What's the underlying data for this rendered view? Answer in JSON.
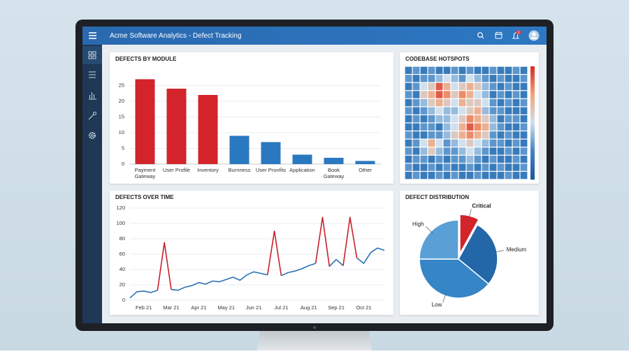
{
  "header": {
    "title": "Acme Software Analytics - Defect Tracking",
    "notification_count": "1"
  },
  "chart_data": [
    {
      "type": "bar",
      "title": "DEFECTS BY MODULE",
      "categories": [
        "Payment\nGateway",
        "User Profile",
        "Inventory",
        "Burnness",
        "User Pronfits",
        "Application",
        "Book\nGateway",
        "Other"
      ],
      "values": [
        27,
        24,
        22,
        9,
        7,
        3,
        2,
        1
      ],
      "colors": [
        "#d3232b",
        "#d3232b",
        "#d3232b",
        "#2a78bf",
        "#2a78bf",
        "#2a78bf",
        "#2a78bf",
        "#2a78bf"
      ],
      "ylim": [
        0,
        30
      ],
      "yticks": [
        0,
        5,
        10,
        15,
        20,
        25
      ],
      "grid": true
    },
    {
      "type": "heatmap",
      "title": "CODEBASE HOTSPOTS",
      "z": [
        [
          2,
          3,
          2,
          3,
          2,
          2,
          3,
          2,
          3,
          2,
          2,
          3,
          2,
          2,
          3,
          2
        ],
        [
          3,
          2,
          3,
          3,
          4,
          5,
          4,
          3,
          5,
          4,
          3,
          2,
          3,
          2,
          2,
          3
        ],
        [
          2,
          3,
          5,
          6,
          9,
          7,
          5,
          6,
          7,
          6,
          4,
          3,
          2,
          3,
          2,
          2
        ],
        [
          3,
          2,
          6,
          7,
          9,
          8,
          6,
          8,
          7,
          5,
          4,
          2,
          3,
          2,
          3,
          2
        ],
        [
          2,
          3,
          4,
          6,
          7,
          6,
          5,
          7,
          6,
          6,
          5,
          3,
          2,
          3,
          2,
          3
        ],
        [
          3,
          2,
          3,
          4,
          5,
          4,
          4,
          5,
          6,
          7,
          4,
          3,
          3,
          2,
          2,
          2
        ],
        [
          2,
          3,
          2,
          3,
          4,
          4,
          5,
          6,
          8,
          7,
          6,
          4,
          2,
          3,
          3,
          2
        ],
        [
          2,
          2,
          3,
          3,
          2,
          4,
          5,
          7,
          9,
          8,
          7,
          4,
          3,
          2,
          2,
          3
        ],
        [
          3,
          2,
          2,
          3,
          3,
          4,
          6,
          7,
          8,
          7,
          6,
          3,
          2,
          3,
          2,
          2
        ],
        [
          2,
          3,
          5,
          7,
          5,
          3,
          4,
          5,
          6,
          5,
          4,
          3,
          3,
          2,
          3,
          2
        ],
        [
          3,
          2,
          4,
          6,
          4,
          3,
          3,
          4,
          5,
          4,
          3,
          2,
          2,
          3,
          2,
          3
        ],
        [
          2,
          3,
          3,
          2,
          3,
          2,
          3,
          3,
          4,
          3,
          2,
          3,
          2,
          2,
          3,
          2
        ],
        [
          3,
          2,
          2,
          3,
          2,
          3,
          2,
          2,
          3,
          2,
          3,
          2,
          3,
          2,
          2,
          3
        ],
        [
          2,
          3,
          2,
          2,
          3,
          2,
          3,
          2,
          2,
          3,
          2,
          2,
          2,
          3,
          2,
          2
        ]
      ],
      "zlim": [
        0,
        10
      ],
      "colorscale": [
        "#1a5798",
        "#3f84c4",
        "#cfe0ee",
        "#f3a47a",
        "#d42b22"
      ],
      "colorbar": true
    },
    {
      "type": "line",
      "title": "DEFECTS OVER TIME",
      "categories": [
        null,
        null,
        "Feb 21",
        null,
        null,
        null,
        "Mar 21",
        null,
        null,
        null,
        "Apr 21",
        null,
        null,
        null,
        "May 21",
        null,
        null,
        null,
        "Jun 21",
        null,
        null,
        null,
        "Jul 21",
        null,
        null,
        null,
        "Aug 21",
        null,
        null,
        null,
        "Sep 21",
        null,
        null,
        null,
        "Oct 21",
        null,
        null,
        null
      ],
      "series": [
        {
          "color": "#2a72b5",
          "values": [
            3,
            11,
            12,
            10,
            13,
            null,
            14,
            13,
            17,
            19,
            23,
            21,
            25,
            24,
            27,
            30,
            26,
            33,
            37,
            35,
            33,
            null,
            32,
            36,
            38,
            41,
            45,
            48,
            null,
            44,
            53,
            45,
            null,
            55,
            48,
            62,
            68,
            65
          ]
        },
        {
          "color": "#c8202a",
          "values": [
            null,
            null,
            null,
            null,
            13,
            75,
            14,
            null,
            null,
            null,
            null,
            null,
            null,
            null,
            null,
            null,
            null,
            null,
            null,
            null,
            33,
            90,
            32,
            null,
            null,
            null,
            null,
            48,
            108,
            44,
            null,
            45,
            108,
            55,
            null,
            null,
            null,
            null
          ]
        }
      ],
      "ylim": [
        0,
        120
      ],
      "yticks": [
        0,
        20,
        40,
        60,
        80,
        100,
        120
      ],
      "grid": true
    },
    {
      "type": "pie",
      "title": "DEFECT DISTRIBUTION",
      "categories": [
        "Critical",
        "Medium",
        "Low",
        "High"
      ],
      "values": [
        8,
        28,
        39,
        25
      ],
      "colors": [
        "#d3232b",
        "#2467a8",
        "#3585c7",
        "#5a9fd6"
      ],
      "explode": [
        true,
        false,
        false,
        false
      ]
    }
  ]
}
